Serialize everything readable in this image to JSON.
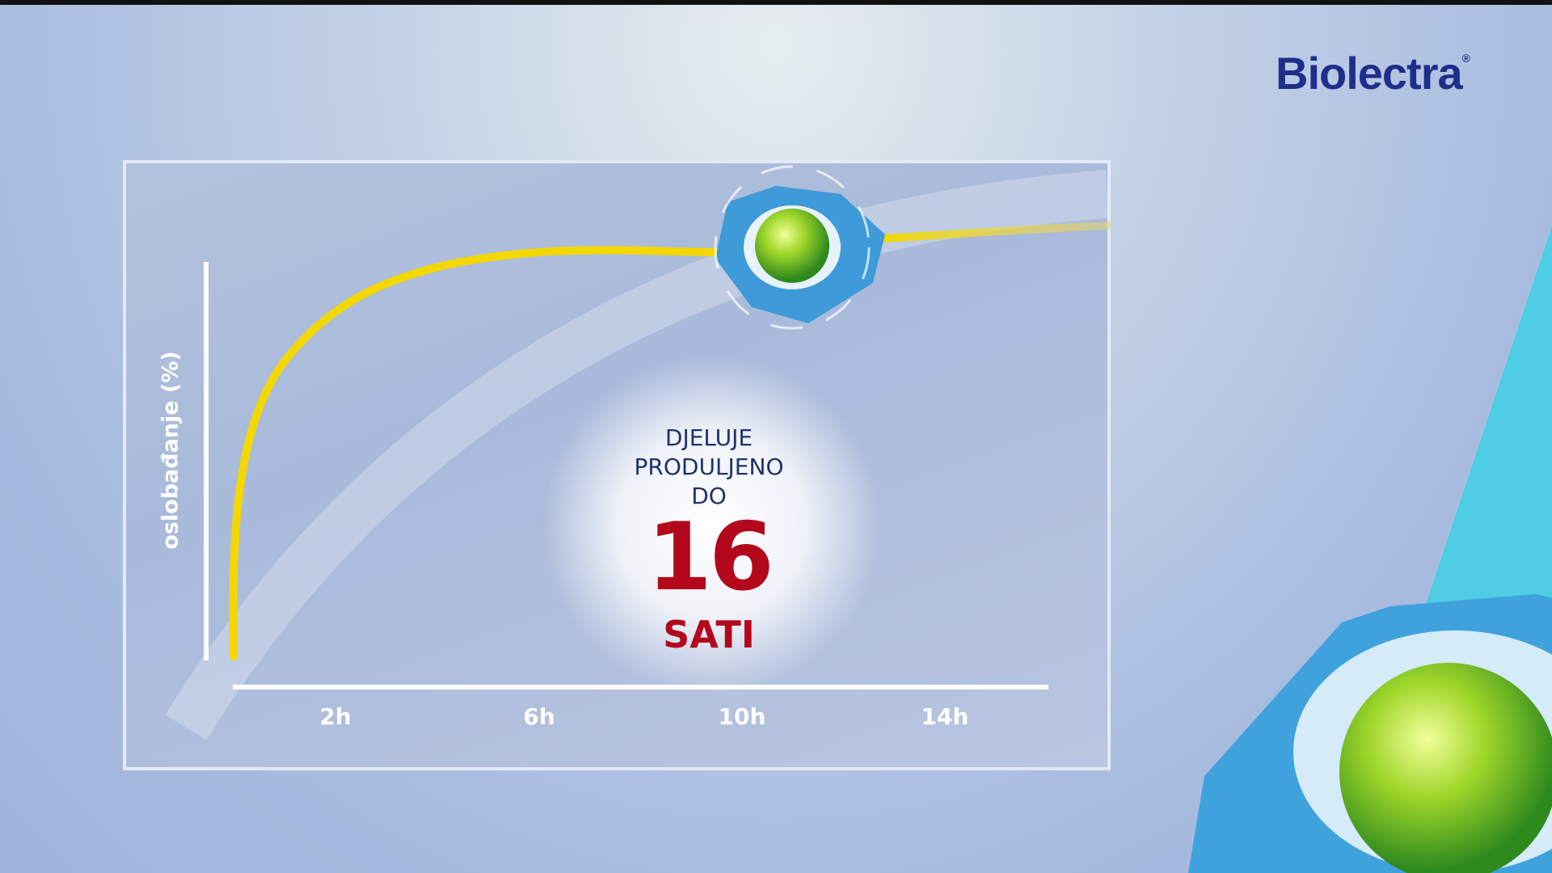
{
  "brand": {
    "name": "Biolectra",
    "mark": "®",
    "color": "#1f2e8a"
  },
  "chart_data": {
    "type": "line",
    "title": "",
    "ylabel": "oslobađanje (%)",
    "xlabel": "",
    "x_ticks": [
      "2h",
      "6h",
      "10h",
      "14h"
    ],
    "grid": false,
    "series": [
      {
        "color": "#f2d800",
        "shape": "rapid rise then plateau, extending to 16h"
      }
    ]
  },
  "claim": {
    "line1": "DJELUJE",
    "line2": "PRODULJENO",
    "line3": "DO",
    "number": "16",
    "unit": "SATI"
  },
  "colors": {
    "accent_red": "#b3081c",
    "curve": "#f2d800",
    "text_navy": "#23306e"
  }
}
